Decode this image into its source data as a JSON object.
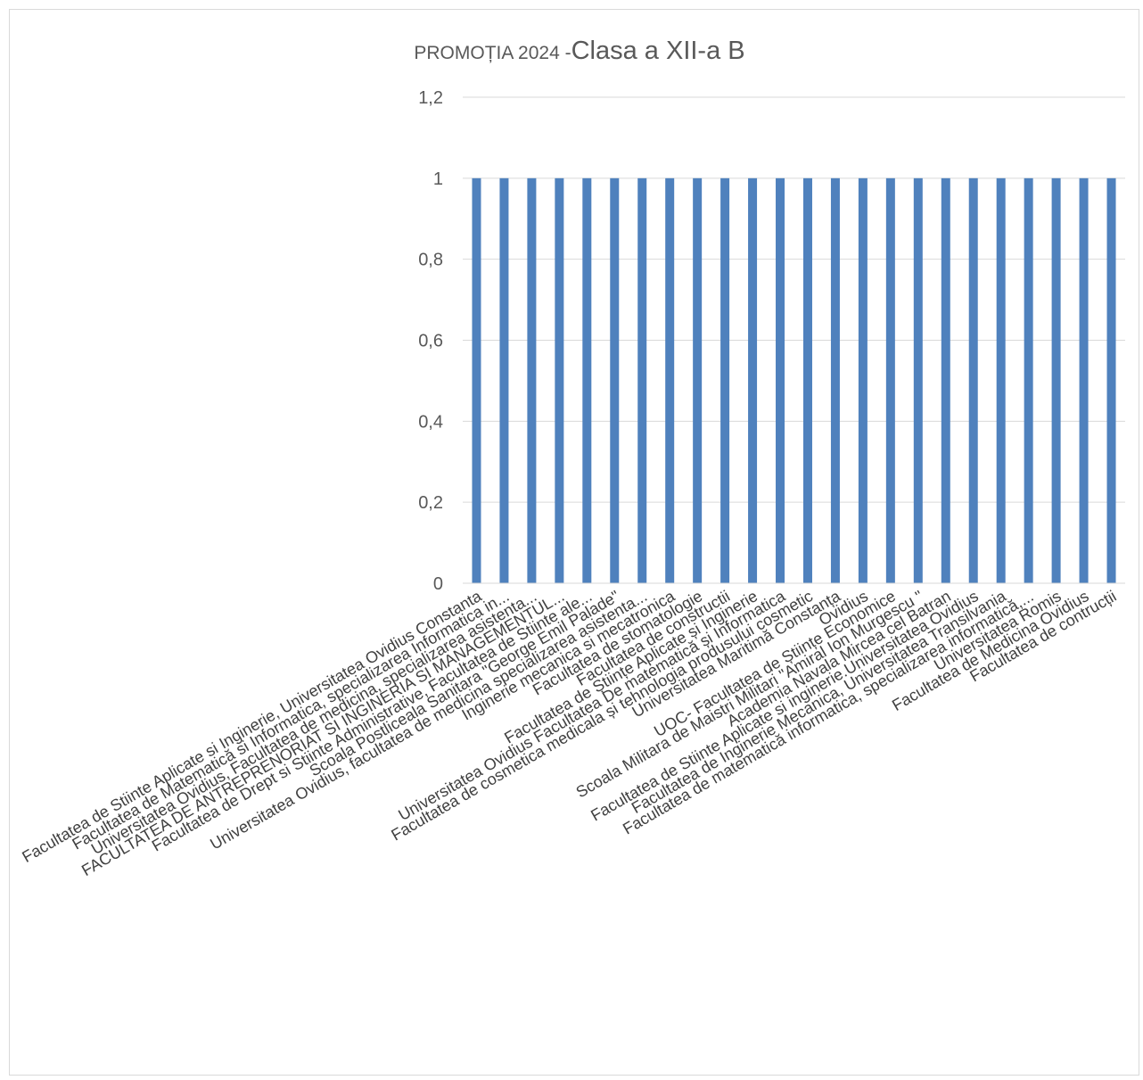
{
  "chart_data": {
    "type": "bar",
    "title_prefix": "PROMOȚIA 2024 -",
    "title_main": "Clasa a XII-a B",
    "xlabel": "",
    "ylabel": "",
    "ylim": [
      0,
      1.2
    ],
    "yticks": [
      {
        "value": 0,
        "label": "0"
      },
      {
        "value": 0.2,
        "label": "0,2"
      },
      {
        "value": 0.4,
        "label": "0,4"
      },
      {
        "value": 0.6,
        "label": "0,6"
      },
      {
        "value": 0.8,
        "label": "0,8"
      },
      {
        "value": 1,
        "label": "1"
      },
      {
        "value": 1.2,
        "label": "1,2"
      }
    ],
    "grid": true,
    "legend": "none",
    "colors": {
      "bar": "#4f81bd",
      "grid": "#d9d9d9",
      "text": "#595959"
    },
    "categories": [
      "Facultatea de Stiinte Aplicate si Inginerie, Universitatea Ovidius Constanta",
      "Facultatea de Matematică si Informatica, specializarea Informatica in...",
      "Universitatea Ovidius, Facultatea de medicina, specializarea asistenta...",
      "FACULTATEA DE ANTREPRENORIAT SI INGINERIA SI MANAGEMENTUL...",
      "Facultatea de Drept si Stiinte Administrative, Facultatea de Stiinte ale...",
      "Scoala Postliceala Sanitara \"George Emil Palade\"",
      "Universitatea Ovidius, facultatea de medicina specializarea asistenta...",
      "Inginerie mecanica si mecatronica",
      "Facultatea de stomatologie",
      "Facultatea de constructii",
      "Facultatea de Științe Aplicate și Inginerie",
      "Universitatea Ovidius Facultatea De matematică și Informatica",
      "Facultatea de cosmetica medicala și tehnologia produsului cosmetic",
      "Universitatea Maritimă Constanța",
      "Ovidius",
      "UOC- Facultatea de Științe Economice",
      "Scoala Militara de Maistri Militari \"Amiral Ion Murgescu \"",
      "Academia Navala Mircea cel Batran",
      "Facultatea de Stiinte Aplicate si inginerie.Universitatea Ovidius",
      "Facultatea de Inginerie Mecanica, Universitatea Transilvania",
      "Facultatea de matematică informatica, specializarea informatică,...",
      "Universitatea Romis",
      "Facultatea de Medicina Ovidius",
      "Facultatea de contrucții"
    ],
    "values": [
      1,
      1,
      1,
      1,
      1,
      1,
      1,
      1,
      1,
      1,
      1,
      1,
      1,
      1,
      1,
      1,
      1,
      1,
      1,
      1,
      1,
      1,
      1,
      1
    ]
  }
}
